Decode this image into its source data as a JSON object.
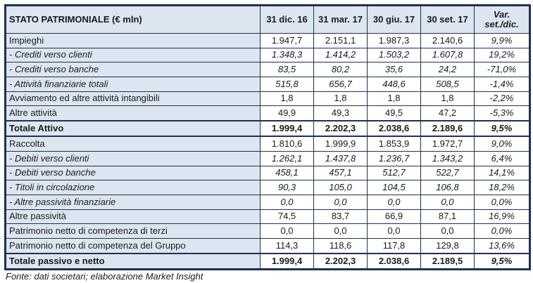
{
  "table": {
    "header": {
      "title": "STATO PATRIMONIALE (€ mln)",
      "columns": [
        "31 dic. 16",
        "31 mar. 17",
        "30 giu. 17",
        "30 set. 17"
      ],
      "var_header_line1": "Var.",
      "var_header_line2": "set./dic."
    },
    "rows": [
      {
        "label": "Impieghi",
        "values": [
          "1.947,7",
          "2.151,1",
          "1.987,3",
          "2.140,6"
        ],
        "var": "9,9%",
        "style": "normal"
      },
      {
        "label": "- Crediti verso clienti",
        "values": [
          "1.348,3",
          "1.414,2",
          "1.503,2",
          "1.607,8"
        ],
        "var": "19,2%",
        "style": "italic"
      },
      {
        "label": "- Crediti verso banche",
        "values": [
          "83,5",
          "80,2",
          "35,6",
          "24,2"
        ],
        "var": "-71,0%",
        "style": "italic"
      },
      {
        "label": "- Attività finanziarie totali",
        "values": [
          "515,8",
          "656,7",
          "448,6",
          "508,5"
        ],
        "var": "-1,4%",
        "style": "italic"
      },
      {
        "label": "Avviamento ed altre attività intangibili",
        "values": [
          "1,8",
          "1,8",
          "1,8",
          "1,8"
        ],
        "var": "-2,2%",
        "style": "normal"
      },
      {
        "label": "Altre attività",
        "values": [
          "49,9",
          "49,3",
          "49,5",
          "47,2"
        ],
        "var": "-5,3%",
        "style": "normal"
      },
      {
        "label": "Totale Attivo",
        "values": [
          "1.999,4",
          "2.202,3",
          "2.038,6",
          "2.189,6"
        ],
        "var": "9,5%",
        "style": "total"
      },
      {
        "label": "Raccolta",
        "values": [
          "1.810,6",
          "1.999,9",
          "1.853,9",
          "1.972,7"
        ],
        "var": "9,0%",
        "style": "normal"
      },
      {
        "label": "- Debiti verso clienti",
        "values": [
          "1.262,1",
          "1.437,8",
          "1.236,7",
          "1.343,2"
        ],
        "var": "6,4%",
        "style": "italic"
      },
      {
        "label": "- Debiti verso banche",
        "values": [
          "458,1",
          "457,1",
          "512,7",
          "522,7"
        ],
        "var": "14,1%",
        "style": "italic"
      },
      {
        "label": "- Titoli in circolazione",
        "values": [
          "90,3",
          "105,0",
          "104,5",
          "106,8"
        ],
        "var": "18,2%",
        "style": "italic"
      },
      {
        "label": "- Altre passività finanziarie",
        "values": [
          "0,0",
          "0,0",
          "0,0",
          "0,0"
        ],
        "var": "0,0%",
        "style": "italic"
      },
      {
        "label": "Altre passività",
        "values": [
          "74,5",
          "83,7",
          "66,9",
          "87,1"
        ],
        "var": "16,9%",
        "style": "normal"
      },
      {
        "label": "Patrimonio netto di competenza di terzi",
        "values": [
          "0,0",
          "0,0",
          "0,0",
          "0,0"
        ],
        "var": "0,0%",
        "style": "normal"
      },
      {
        "label": "Patrimonio netto di competenza del Gruppo",
        "values": [
          "114,3",
          "118,6",
          "117,8",
          "129,8"
        ],
        "var": "13,6%",
        "style": "normal"
      },
      {
        "label": "Totale passivo e netto",
        "values": [
          "1.999,4",
          "2.202,3",
          "2.038,6",
          "2.189,5"
        ],
        "var": "9,5%",
        "style": "total"
      }
    ],
    "footer": "Fonte: dati societari; elaborazione Market Insight"
  },
  "colors": {
    "header_fill": "#dce6f1",
    "border": "#1f3150",
    "text": "#1a1a1a",
    "background": "#ffffff"
  }
}
